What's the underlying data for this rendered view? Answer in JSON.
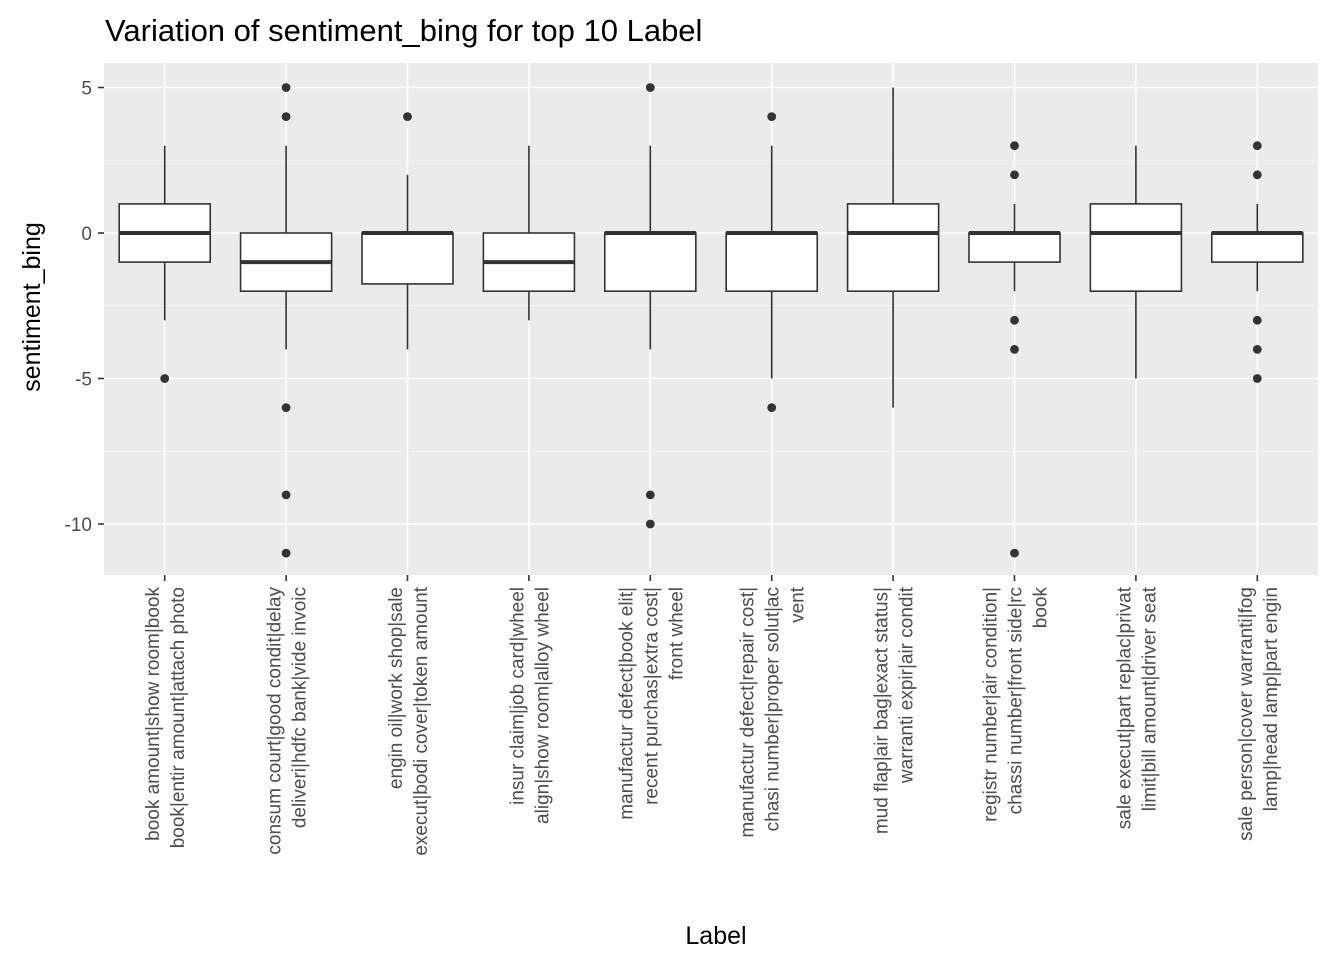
{
  "chart_data": {
    "type": "box",
    "title": "Variation of  sentiment_bing for top 10 Label",
    "xlabel": "Label",
    "ylabel": "sentiment_bing",
    "ylim": [
      -11.8,
      5.8
    ],
    "yticks": [
      5,
      0,
      -5,
      -10
    ],
    "ytick_labels": [
      "5",
      "0",
      "-5",
      "-10"
    ],
    "grid": true,
    "categories": [
      {
        "label": [
          "book amount|show room|book",
          "book|entir amount|attach photo"
        ],
        "q1": -1,
        "median": 0,
        "q3": 1,
        "whisker_low": -3,
        "whisker_high": 3,
        "outliers": [
          -5
        ]
      },
      {
        "label": [
          "consum court|good condit|delay",
          "deliveri|hdfc bank|vide invoic"
        ],
        "q1": -2,
        "median": -1,
        "q3": 0,
        "whisker_low": -4,
        "whisker_high": 3,
        "outliers": [
          5,
          4,
          -6,
          -9,
          -11
        ]
      },
      {
        "label": [
          "engin oil|work shop|sale",
          "execut|bodi cover|token amount"
        ],
        "q1": -1.75,
        "median": 0,
        "q3": 0,
        "whisker_low": -4,
        "whisker_high": 2,
        "outliers": [
          4
        ]
      },
      {
        "label": [
          "insur claim|job card|wheel",
          "align|show room|alloy wheel"
        ],
        "q1": -2,
        "median": -1,
        "q3": 0,
        "whisker_low": -3,
        "whisker_high": 3,
        "outliers": []
      },
      {
        "label": [
          "manufactur defect|book elit|",
          "recent purchas|extra cost|",
          "front wheel"
        ],
        "q1": -2,
        "median": 0,
        "q3": 0,
        "whisker_low": -4,
        "whisker_high": 3,
        "outliers": [
          5,
          -9,
          -10
        ]
      },
      {
        "label": [
          "manufactur defect|repair cost|",
          "chasi number|proper solut|ac",
          "vent"
        ],
        "q1": -2,
        "median": 0,
        "q3": 0,
        "whisker_low": -5,
        "whisker_high": 3,
        "outliers": [
          4,
          -6
        ]
      },
      {
        "label": [
          "mud flap|air bag|exact status|",
          "warranti expir|air condit"
        ],
        "q1": -2,
        "median": 0,
        "q3": 1,
        "whisker_low": -6,
        "whisker_high": 5,
        "outliers": []
      },
      {
        "label": [
          "registr number|air condition|",
          "chassi number|front side|rc",
          "book"
        ],
        "q1": -1,
        "median": 0,
        "q3": 0,
        "whisker_low": -2,
        "whisker_high": 1,
        "outliers": [
          3,
          2,
          -3,
          -4,
          -11
        ]
      },
      {
        "label": [
          "sale execut|part replac|privat",
          "limit|bill amount|driver seat"
        ],
        "q1": -2,
        "median": 0,
        "q3": 1,
        "whisker_low": -5,
        "whisker_high": 3,
        "outliers": []
      },
      {
        "label": [
          "sale person|cover warranti|fog",
          "lamp|head lamp|part engin"
        ],
        "q1": -1,
        "median": 0,
        "q3": 0,
        "whisker_low": -2,
        "whisker_high": 1,
        "outliers": [
          3,
          2,
          -3,
          -4,
          -5
        ]
      }
    ]
  },
  "colors": {
    "panel_background": "#ebebeb",
    "grid_major": "#ffffff",
    "box_fill": "#ffffff",
    "box_line": "#333333",
    "tick_text": "#4d4d4d"
  }
}
